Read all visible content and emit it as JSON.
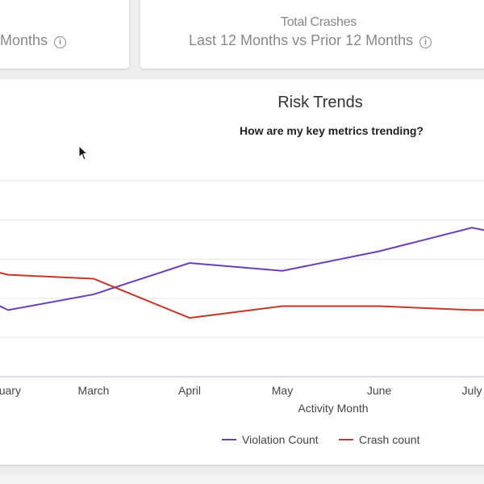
{
  "kpi_cards": {
    "left": {
      "subtitle": "Months",
      "info_icon": "info-icon"
    },
    "right": {
      "title": "Total Crashes",
      "subtitle": "Last 12 Months vs Prior 12 Months",
      "info_icon": "info-icon"
    }
  },
  "risk_trends": {
    "title": "Risk Trends",
    "subtitle": "How are my key metrics trending?"
  },
  "chart_data": {
    "type": "line",
    "categories": [
      "February",
      "March",
      "April",
      "May",
      "June",
      "July"
    ],
    "visible_category_labels": [
      "ruary",
      "March",
      "April",
      "May",
      "June",
      "July"
    ],
    "xlabel": "Activity Month",
    "series": [
      {
        "name": "Violation Count",
        "color": "#6a3fb3",
        "values": [
          1.7,
          2.1,
          2.9,
          2.7,
          3.2,
          3.8
        ]
      },
      {
        "name": "Crash count",
        "color": "#c0392b",
        "values": [
          2.6,
          2.5,
          1.5,
          1.8,
          1.8,
          1.7
        ]
      }
    ],
    "ylim": [
      0,
      5
    ],
    "grid": true,
    "legend_position": "bottom"
  }
}
